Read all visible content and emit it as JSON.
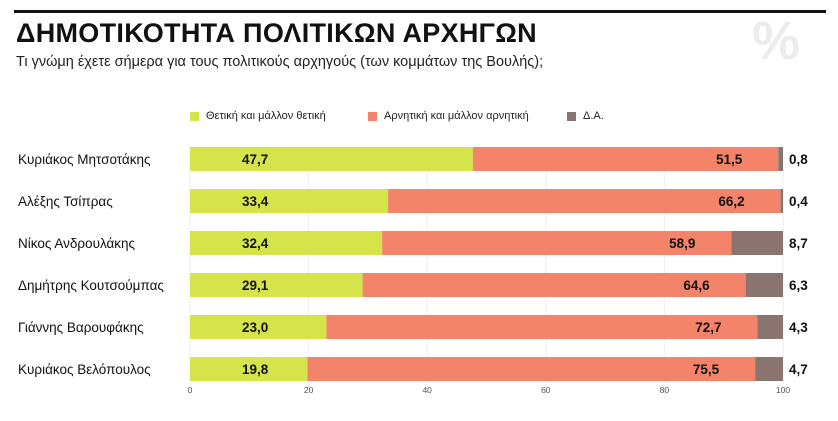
{
  "header": {
    "title": "ΔΗΜΟΤΙΚΟΤΗΤΑ ΠΟΛΙΤΙΚΩΝ ΑΡΧΗΓΩΝ",
    "subtitle": "Τι γνώμη έχετε σήμερα για τους πολιτικούς αρχηγούς (των κομμάτων της Βουλής);",
    "watermark": "%"
  },
  "colors": {
    "positive": "#d4e44a",
    "negative": "#f48469",
    "dk": "#8a7470",
    "rule": "#111111"
  },
  "chart_data": {
    "type": "bar",
    "orientation": "horizontal",
    "stacked": true,
    "title": "ΔΗΜΟΤΙΚΟΤΗΤΑ ΠΟΛΙΤΙΚΩΝ ΑΡΧΗΓΩΝ",
    "subtitle": "Τι γνώμη έχετε σήμερα για τους πολιτικούς αρχηγούς (των κομμάτων της Βουλής);",
    "categories": [
      "Κυριάκος Μητσοτάκης",
      "Αλέξης Τσίπρας",
      "Νίκος Ανδρουλάκης",
      "Δημήτρης Κουτσούμπας",
      "Γιάννης Βαρουφάκης",
      "Κυριάκος Βελόπουλος"
    ],
    "series": [
      {
        "name": "Θετική και μάλλον θετική",
        "values": [
          47.7,
          33.4,
          32.4,
          29.1,
          23.0,
          19.8
        ],
        "labels": [
          "47,7",
          "33,4",
          "32,4",
          "29,1",
          "23,0",
          "19,8"
        ]
      },
      {
        "name": "Αρνητική και μάλλον αρνητική",
        "values": [
          51.5,
          66.2,
          58.9,
          64.6,
          72.7,
          75.5
        ],
        "labels": [
          "51,5",
          "66,2",
          "58,9",
          "64,6",
          "72,7",
          "75,5"
        ]
      },
      {
        "name": "Δ.Α.",
        "values": [
          0.8,
          0.4,
          8.7,
          6.3,
          4.3,
          4.7
        ],
        "labels": [
          "0,8",
          "0,4",
          "8,7",
          "6,3",
          "4,3",
          "4,7"
        ]
      }
    ],
    "xlim": [
      0,
      100
    ],
    "xticks": [
      0,
      20,
      40,
      60,
      80,
      100
    ],
    "xtick_labels": [
      "0",
      "20",
      "40",
      "60",
      "80",
      "100"
    ],
    "legend_position": "top",
    "grid": true
  }
}
